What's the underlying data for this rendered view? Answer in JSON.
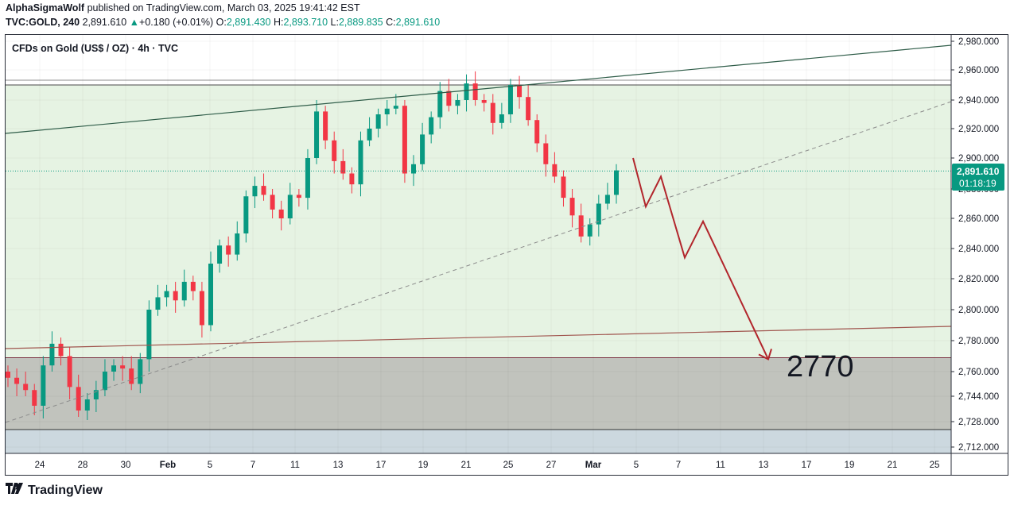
{
  "header": {
    "author": "AlphaSigmaWolf",
    "published": "published on TradingView.com, March 03, 2025 19:41:42 EST",
    "symbol": "TVC:GOLD, 240",
    "last": "2,891.610",
    "change": "+0.180 (+0.01%)",
    "o_label": "O:",
    "o_value": "2,891.430",
    "h_label": "H:",
    "h_value": "2,893.710",
    "l_label": "L:",
    "l_value": "2,889.835",
    "c_label": "C:",
    "c_value": "2,891.610"
  },
  "legend": {
    "title": "CFDs on Gold (US$ / OZ) · 4h · TVC"
  },
  "price_tag": {
    "price": "2,891.610",
    "countdown": "01:18:19"
  },
  "target_label": "2770",
  "footer": {
    "brand": "TradingView"
  },
  "colors": {
    "up": "#089981",
    "down": "#f23645",
    "zone_green": "#e6f3e3",
    "zone_gray": "#c1c3bd",
    "zone_blue": "#ccd8df",
    "projection": "#b2262c",
    "trend": "#2e5c48",
    "support_line": "#a0554e"
  },
  "chart_data": {
    "type": "candlestick",
    "title": "CFDs on Gold (US$ / OZ) · 4h · TVC",
    "y_ticks": [
      "2,980.000",
      "2,960.000",
      "2,940.000",
      "2,920.000",
      "2,900.000",
      "2,880.000",
      "2,860.000",
      "2,840.000",
      "2,820.000",
      "2,800.000",
      "2,780.000",
      "2,760.000",
      "2,744.000",
      "2,728.000",
      "2,712.000"
    ],
    "x_ticks": [
      "24",
      "28",
      "30",
      "Feb",
      "5",
      "7",
      "11",
      "13",
      "17",
      "19",
      "21",
      "25",
      "27",
      "Mar",
      "5",
      "7",
      "11",
      "13",
      "17",
      "19",
      "21",
      "25"
    ],
    "last_price": 2891.61,
    "target": 2770,
    "zones": [
      {
        "name": "green-range",
        "from": 2769,
        "to": 2950
      },
      {
        "name": "gray-range",
        "from": 2723,
        "to": 2769
      }
    ],
    "closes_approx": [
      2756,
      2752,
      2748,
      2738,
      2764,
      2778,
      2770,
      2750,
      2735,
      2742,
      2748,
      2760,
      2764,
      2762,
      2752,
      2768,
      2800,
      2808,
      2812,
      2806,
      2818,
      2812,
      2790,
      2830,
      2842,
      2836,
      2850,
      2875,
      2882,
      2876,
      2866,
      2860,
      2876,
      2874,
      2900,
      2932,
      2912,
      2898,
      2890,
      2883,
      2912,
      2920,
      2930,
      2934,
      2936,
      2890,
      2896,
      2916,
      2928,
      2946,
      2936,
      2940,
      2951,
      2940,
      2938,
      2924,
      2930,
      2950,
      2942,
      2926,
      2910,
      2896,
      2888,
      2874,
      2862,
      2848,
      2856,
      2870,
      2876,
      2892
    ]
  },
  "projection_path": [
    2900,
    2868,
    2888,
    2834,
    2858,
    2768
  ]
}
